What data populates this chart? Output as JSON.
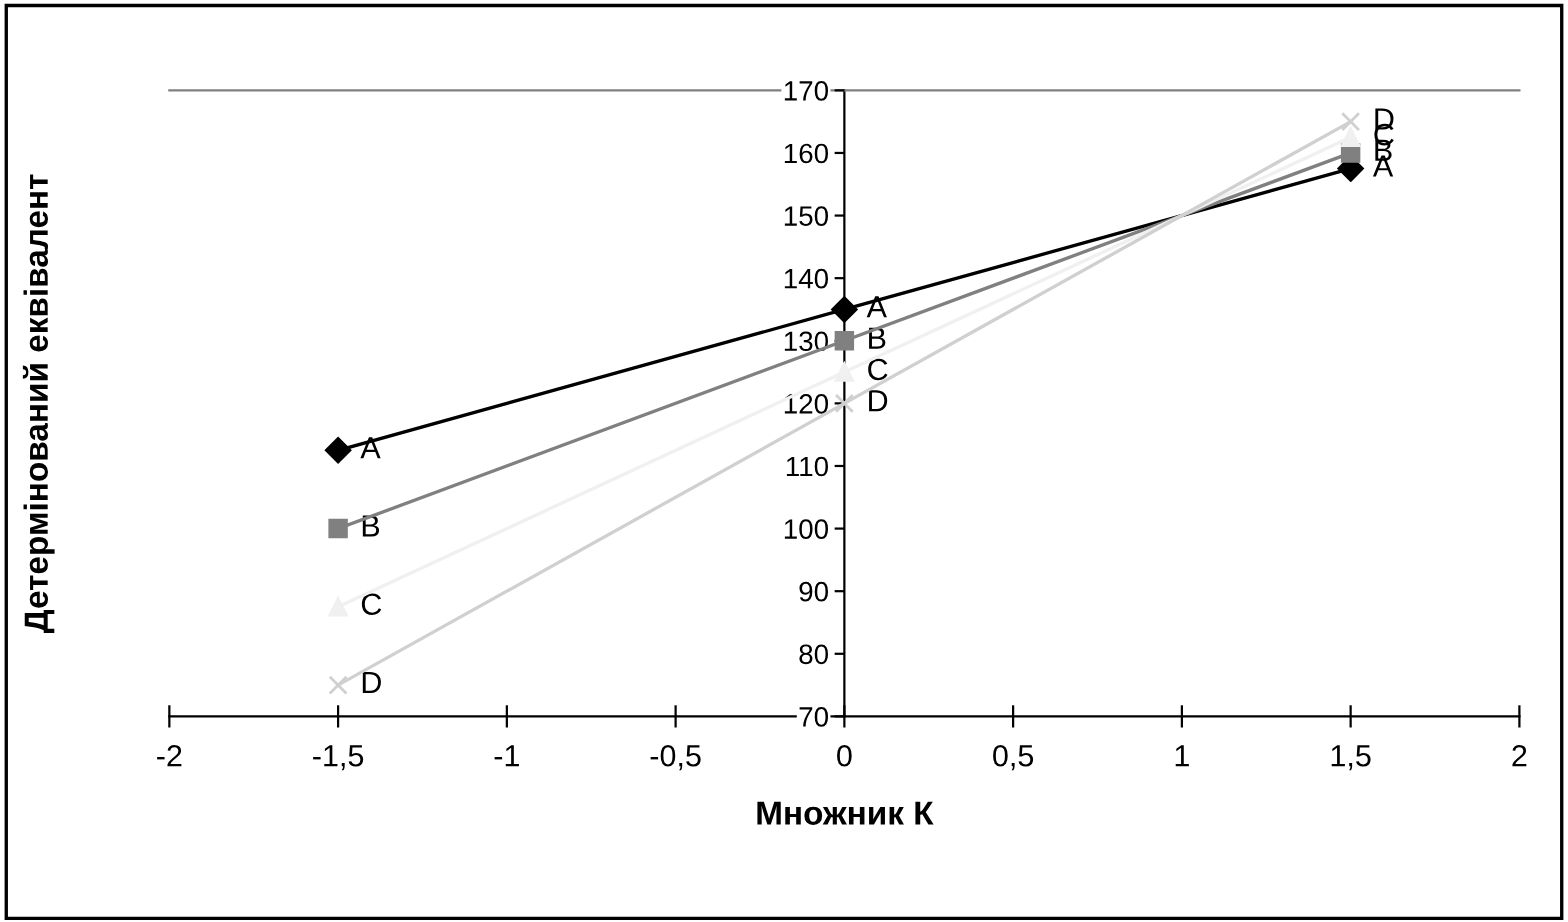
{
  "chart_data": {
    "type": "line",
    "xlabel": "Множник К",
    "ylabel": "Детермінований еквівалент",
    "x": [
      -1.5,
      0,
      1.5
    ],
    "series": [
      {
        "name": "A",
        "color": "#000000",
        "marker": "diamond",
        "values": [
          112.5,
          135,
          157.5
        ]
      },
      {
        "name": "B",
        "color": "#808080",
        "marker": "square",
        "values": [
          100,
          130,
          160
        ]
      },
      {
        "name": "C",
        "color": "#f0f0f0",
        "marker": "triangle",
        "values": [
          87.5,
          125,
          162.5
        ]
      },
      {
        "name": "D",
        "color": "#d0d0d0",
        "marker": "cross",
        "values": [
          75,
          120,
          165
        ]
      }
    ],
    "xlim": [
      -2,
      2
    ],
    "xticks": [
      {
        "value": -2,
        "label": "-2"
      },
      {
        "value": -1.5,
        "label": "-1,5"
      },
      {
        "value": -1,
        "label": "-1"
      },
      {
        "value": -0.5,
        "label": "-0,5"
      },
      0,
      {
        "value": 0.5,
        "label": "0,5"
      },
      1,
      {
        "value": 1.5,
        "label": "1,5"
      },
      2
    ],
    "ylim": [
      70,
      170
    ],
    "yticks": [
      70,
      80,
      90,
      100,
      110,
      120,
      130,
      140,
      150,
      160,
      170
    ],
    "grid": false,
    "legend": false
  }
}
